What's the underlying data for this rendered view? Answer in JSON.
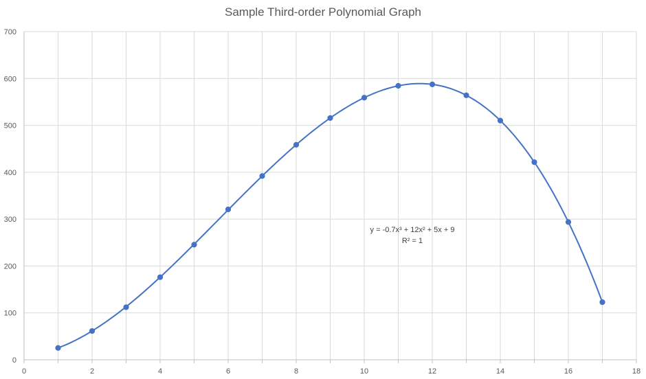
{
  "chart_data": {
    "type": "scatter",
    "title": "Sample Third-order Polynomial Graph",
    "xlabel": "",
    "ylabel": "",
    "xlim": [
      0,
      18
    ],
    "ylim": [
      0,
      700
    ],
    "x_ticks": [
      0,
      2,
      4,
      6,
      8,
      10,
      12,
      14,
      16,
      18
    ],
    "y_ticks": [
      0,
      100,
      200,
      300,
      400,
      500,
      600,
      700
    ],
    "grid": true,
    "legend": "none",
    "series": [
      {
        "x": [
          1,
          2,
          3,
          4,
          5,
          6,
          7,
          8,
          9,
          10,
          11,
          12,
          13,
          14,
          15,
          16,
          17
        ],
        "y": [
          25.3,
          61.4,
          112.1,
          176.2,
          245.5,
          320.8,
          391.9,
          458.6,
          515.7,
          559,
          584.3,
          587.4,
          564.1,
          510.2,
          421.5,
          293.8,
          122.9
        ],
        "color": "#4472C4",
        "marker": "circle"
      }
    ],
    "trendline": {
      "type": "polynomial",
      "order": 3,
      "coefficients": [
        -0.7,
        12,
        5,
        9
      ],
      "equation_label": "y = -0.7x³ + 12x² + 5x + 9",
      "r2_label": "R² = 1",
      "color": "#4472C4"
    }
  },
  "colors": {
    "series": "#4472C4",
    "grid": "#d9d9d9",
    "axis": "#bfbfbf",
    "text": "#595959"
  }
}
